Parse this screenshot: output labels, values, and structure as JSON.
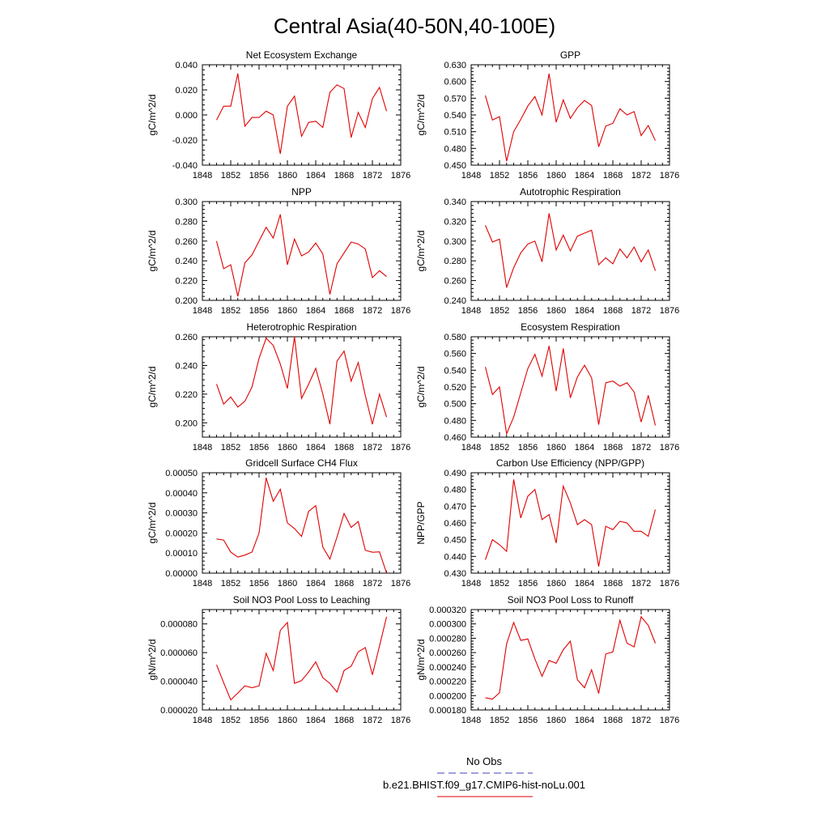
{
  "figure": {
    "title": "Central Asia(40-50N,40-100E)",
    "legend": {
      "entries": [
        {
          "label": "No Obs",
          "color": "#4040c0",
          "dash": "dashed"
        },
        {
          "label": "b.e21.BHIST.f09_g17.CMIP6-hist-noLu.001",
          "color": "#e00000",
          "dash": "solid"
        }
      ]
    }
  },
  "chart_data": [
    {
      "type": "line",
      "title": "Net Ecosystem Exchange",
      "ylabel": "gC/m^2/d",
      "xlim": [
        1848,
        1876
      ],
      "ylim": [
        -0.04,
        0.04
      ],
      "xticks": [
        "1848",
        "1852",
        "1856",
        "1860",
        "1864",
        "1868",
        "1872",
        "1876"
      ],
      "yticks": [
        "-0.040",
        "-0.020",
        "0.000",
        "0.020",
        "0.040"
      ],
      "x": [
        1850,
        1851,
        1852,
        1853,
        1854,
        1855,
        1856,
        1857,
        1858,
        1859,
        1860,
        1861,
        1862,
        1863,
        1864,
        1865,
        1866,
        1867,
        1868,
        1869,
        1870,
        1871,
        1872,
        1873,
        1874
      ],
      "series": [
        {
          "name": "b.e21.BHIST.f09_g17.CMIP6-hist-noLu.001",
          "color": "#e00000",
          "values": [
            -0.004,
            0.007,
            0.007,
            0.033,
            -0.009,
            -0.002,
            -0.002,
            0.003,
            0.0,
            -0.031,
            0.007,
            0.015,
            -0.017,
            -0.006,
            -0.005,
            -0.01,
            0.018,
            0.024,
            0.021,
            -0.018,
            0.002,
            -0.01,
            0.013,
            0.022,
            0.003
          ]
        }
      ]
    },
    {
      "type": "line",
      "title": "GPP",
      "ylabel": "gC/m^2/d",
      "xlim": [
        1848,
        1876
      ],
      "ylim": [
        0.45,
        0.63
      ],
      "xticks": [
        "1848",
        "1852",
        "1856",
        "1860",
        "1864",
        "1868",
        "1872",
        "1876"
      ],
      "yticks": [
        "0.450",
        "0.480",
        "0.510",
        "0.540",
        "0.570",
        "0.600",
        "0.630"
      ],
      "x": [
        1850,
        1851,
        1852,
        1853,
        1854,
        1855,
        1856,
        1857,
        1858,
        1859,
        1860,
        1861,
        1862,
        1863,
        1864,
        1865,
        1866,
        1867,
        1868,
        1869,
        1870,
        1871,
        1872,
        1873,
        1874
      ],
      "series": [
        {
          "name": "b.e21.BHIST.f09_g17.CMIP6-hist-noLu.001",
          "color": "#e00000",
          "values": [
            0.575,
            0.531,
            0.537,
            0.457,
            0.51,
            0.532,
            0.556,
            0.573,
            0.54,
            0.614,
            0.527,
            0.567,
            0.534,
            0.553,
            0.566,
            0.557,
            0.483,
            0.52,
            0.525,
            0.551,
            0.54,
            0.546,
            0.503,
            0.521,
            0.494
          ]
        }
      ]
    },
    {
      "type": "line",
      "title": "NPP",
      "ylabel": "gC/m^2/d",
      "xlim": [
        1848,
        1876
      ],
      "ylim": [
        0.2,
        0.3
      ],
      "xticks": [
        "1848",
        "1852",
        "1856",
        "1860",
        "1864",
        "1868",
        "1872",
        "1876"
      ],
      "yticks": [
        "0.200",
        "0.220",
        "0.240",
        "0.260",
        "0.280",
        "0.300"
      ],
      "x": [
        1850,
        1851,
        1852,
        1853,
        1854,
        1855,
        1856,
        1857,
        1858,
        1859,
        1860,
        1861,
        1862,
        1863,
        1864,
        1865,
        1866,
        1867,
        1868,
        1869,
        1870,
        1871,
        1872,
        1873,
        1874
      ],
      "series": [
        {
          "name": "b.e21.BHIST.f09_g17.CMIP6-hist-noLu.001",
          "color": "#e00000",
          "values": [
            0.26,
            0.232,
            0.236,
            0.204,
            0.238,
            0.246,
            0.26,
            0.274,
            0.263,
            0.287,
            0.236,
            0.262,
            0.245,
            0.249,
            0.258,
            0.247,
            0.206,
            0.237,
            0.248,
            0.259,
            0.257,
            0.252,
            0.223,
            0.23,
            0.224
          ]
        }
      ]
    },
    {
      "type": "line",
      "title": "Autotrophic Respiration",
      "ylabel": "gC/m^2/d",
      "xlim": [
        1848,
        1876
      ],
      "ylim": [
        0.24,
        0.34
      ],
      "xticks": [
        "1848",
        "1852",
        "1856",
        "1860",
        "1864",
        "1868",
        "1872",
        "1876"
      ],
      "yticks": [
        "0.240",
        "0.260",
        "0.280",
        "0.300",
        "0.320",
        "0.340"
      ],
      "x": [
        1850,
        1851,
        1852,
        1853,
        1854,
        1855,
        1856,
        1857,
        1858,
        1859,
        1860,
        1861,
        1862,
        1863,
        1864,
        1865,
        1866,
        1867,
        1868,
        1869,
        1870,
        1871,
        1872,
        1873,
        1874
      ],
      "series": [
        {
          "name": "b.e21.BHIST.f09_g17.CMIP6-hist-noLu.001",
          "color": "#e00000",
          "values": [
            0.316,
            0.299,
            0.302,
            0.253,
            0.273,
            0.288,
            0.297,
            0.3,
            0.279,
            0.328,
            0.291,
            0.306,
            0.29,
            0.305,
            0.308,
            0.311,
            0.276,
            0.283,
            0.277,
            0.292,
            0.283,
            0.294,
            0.279,
            0.291,
            0.27
          ]
        }
      ]
    },
    {
      "type": "line",
      "title": "Heterotrophic Respiration",
      "ylabel": "gC/m^2/d",
      "xlim": [
        1848,
        1876
      ],
      "ylim": [
        0.19,
        0.26
      ],
      "xticks": [
        "1848",
        "1852",
        "1856",
        "1860",
        "1864",
        "1868",
        "1872",
        "1876"
      ],
      "yticks": [
        "0.200",
        "0.220",
        "0.240",
        "0.260"
      ],
      "x": [
        1850,
        1851,
        1852,
        1853,
        1854,
        1855,
        1856,
        1857,
        1858,
        1859,
        1860,
        1861,
        1862,
        1863,
        1864,
        1865,
        1866,
        1867,
        1868,
        1869,
        1870,
        1871,
        1872,
        1873,
        1874
      ],
      "series": [
        {
          "name": "b.e21.BHIST.f09_g17.CMIP6-hist-noLu.001",
          "color": "#e00000",
          "values": [
            0.227,
            0.213,
            0.218,
            0.211,
            0.215,
            0.225,
            0.245,
            0.259,
            0.254,
            0.241,
            0.224,
            0.26,
            0.217,
            0.227,
            0.238,
            0.22,
            0.199,
            0.243,
            0.25,
            0.229,
            0.242,
            0.219,
            0.199,
            0.22,
            0.204
          ]
        }
      ]
    },
    {
      "type": "line",
      "title": "Ecosystem Respiration",
      "ylabel": "gC/m^2/d",
      "xlim": [
        1848,
        1876
      ],
      "ylim": [
        0.46,
        0.58
      ],
      "xticks": [
        "1848",
        "1852",
        "1856",
        "1860",
        "1864",
        "1868",
        "1872",
        "1876"
      ],
      "yticks": [
        "0.460",
        "0.480",
        "0.500",
        "0.520",
        "0.540",
        "0.560",
        "0.580"
      ],
      "x": [
        1850,
        1851,
        1852,
        1853,
        1854,
        1855,
        1856,
        1857,
        1858,
        1859,
        1860,
        1861,
        1862,
        1863,
        1864,
        1865,
        1866,
        1867,
        1868,
        1869,
        1870,
        1871,
        1872,
        1873,
        1874
      ],
      "series": [
        {
          "name": "b.e21.BHIST.f09_g17.CMIP6-hist-noLu.001",
          "color": "#e00000",
          "values": [
            0.544,
            0.511,
            0.52,
            0.464,
            0.484,
            0.513,
            0.542,
            0.559,
            0.533,
            0.569,
            0.515,
            0.566,
            0.507,
            0.532,
            0.546,
            0.531,
            0.475,
            0.525,
            0.527,
            0.521,
            0.525,
            0.514,
            0.478,
            0.51,
            0.474
          ]
        }
      ]
    },
    {
      "type": "line",
      "title": "Gridcell Surface CH4 Flux",
      "ylabel": "gC/m^2/d",
      "xlim": [
        1848,
        1876
      ],
      "ylim": [
        0.0,
        0.0005
      ],
      "xticks": [
        "1848",
        "1852",
        "1856",
        "1860",
        "1864",
        "1868",
        "1872",
        "1876"
      ],
      "yticks": [
        "0.00000",
        "0.00010",
        "0.00020",
        "0.00030",
        "0.00040",
        "0.00050"
      ],
      "x": [
        1850,
        1851,
        1852,
        1853,
        1854,
        1855,
        1856,
        1857,
        1858,
        1859,
        1860,
        1861,
        1862,
        1863,
        1864,
        1865,
        1866,
        1867,
        1868,
        1869,
        1870,
        1871,
        1872,
        1873,
        1874
      ],
      "series": [
        {
          "name": "b.e21.BHIST.f09_g17.CMIP6-hist-noLu.001",
          "color": "#e00000",
          "values": [
            0.00017,
            0.000165,
            0.000105,
            8e-05,
            9e-05,
            0.000105,
            0.0002,
            0.000475,
            0.000358,
            0.000418,
            0.00025,
            0.000222,
            0.000183,
            0.000308,
            0.000336,
            0.00013,
            7e-05,
            0.00018,
            0.000297,
            0.000228,
            0.000257,
            0.000114,
            0.000104,
            0.000106,
            0.0
          ]
        }
      ]
    },
    {
      "type": "line",
      "title": "Carbon Use Efficiency (NPP/GPP)",
      "ylabel": "NPP/GPP",
      "xlim": [
        1848,
        1876
      ],
      "ylim": [
        0.43,
        0.49
      ],
      "xticks": [
        "1848",
        "1852",
        "1856",
        "1860",
        "1864",
        "1868",
        "1872",
        "1876"
      ],
      "yticks": [
        "0.430",
        "0.440",
        "0.450",
        "0.460",
        "0.470",
        "0.480",
        "0.490"
      ],
      "x": [
        1850,
        1851,
        1852,
        1853,
        1854,
        1855,
        1856,
        1857,
        1858,
        1859,
        1860,
        1861,
        1862,
        1863,
        1864,
        1865,
        1866,
        1867,
        1868,
        1869,
        1870,
        1871,
        1872,
        1873,
        1874
      ],
      "series": [
        {
          "name": "b.e21.BHIST.f09_g17.CMIP6-hist-noLu.001",
          "color": "#e00000",
          "values": [
            0.438,
            0.45,
            0.447,
            0.443,
            0.486,
            0.463,
            0.476,
            0.48,
            0.462,
            0.465,
            0.448,
            0.482,
            0.472,
            0.459,
            0.462,
            0.459,
            0.434,
            0.458,
            0.456,
            0.461,
            0.46,
            0.455,
            0.455,
            0.452,
            0.468
          ]
        }
      ]
    },
    {
      "type": "line",
      "title": "Soil NO3 Pool Loss to Leaching",
      "ylabel": "gN/m^2/d",
      "xlim": [
        1848,
        1876
      ],
      "ylim": [
        2e-05,
        9e-05
      ],
      "xticks": [
        "1848",
        "1852",
        "1856",
        "1860",
        "1864",
        "1868",
        "1872",
        "1876"
      ],
      "yticks": [
        "0.000020",
        "0.000040",
        "0.000060",
        "0.000080"
      ],
      "x": [
        1850,
        1851,
        1852,
        1853,
        1854,
        1855,
        1856,
        1857,
        1858,
        1859,
        1860,
        1861,
        1862,
        1863,
        1864,
        1865,
        1866,
        1867,
        1868,
        1869,
        1870,
        1871,
        1872,
        1873,
        1874
      ],
      "series": [
        {
          "name": "b.e21.BHIST.f09_g17.CMIP6-hist-noLu.001",
          "color": "#e00000",
          "values": [
            5.15e-05,
            3.9e-05,
            2.7e-05,
            3.18e-05,
            3.68e-05,
            3.55e-05,
            3.68e-05,
            5.95e-05,
            4.75e-05,
            7.55e-05,
            8.1e-05,
            3.85e-05,
            4.05e-05,
            4.65e-05,
            5.35e-05,
            4.25e-05,
            3.85e-05,
            3.25e-05,
            4.75e-05,
            5.05e-05,
            6.05e-05,
            6.35e-05,
            4.45e-05,
            6.45e-05,
            8.5e-05
          ]
        }
      ]
    },
    {
      "type": "line",
      "title": "Soil NO3 Pool Loss to Runoff",
      "ylabel": "gN/m^2/d",
      "xlim": [
        1848,
        1876
      ],
      "ylim": [
        0.00018,
        0.00032
      ],
      "xticks": [
        "1848",
        "1852",
        "1856",
        "1860",
        "1864",
        "1868",
        "1872",
        "1876"
      ],
      "yticks": [
        "0.000180",
        "0.000200",
        "0.000220",
        "0.000240",
        "0.000260",
        "0.000280",
        "0.000300",
        "0.000320"
      ],
      "x": [
        1850,
        1851,
        1852,
        1853,
        1854,
        1855,
        1856,
        1857,
        1858,
        1859,
        1860,
        1861,
        1862,
        1863,
        1864,
        1865,
        1866,
        1867,
        1868,
        1869,
        1870,
        1871,
        1872,
        1873,
        1874
      ],
      "series": [
        {
          "name": "b.e21.BHIST.f09_g17.CMIP6-hist-noLu.001",
          "color": "#e00000",
          "values": [
            0.000197,
            0.000195,
            0.000204,
            0.000272,
            0.000302,
            0.000277,
            0.000279,
            0.000251,
            0.000227,
            0.000249,
            0.000245,
            0.000264,
            0.000276,
            0.000222,
            0.000211,
            0.000236,
            0.000203,
            0.000258,
            0.000261,
            0.000305,
            0.000273,
            0.000268,
            0.00031,
            0.000298,
            0.000273
          ]
        }
      ]
    }
  ]
}
